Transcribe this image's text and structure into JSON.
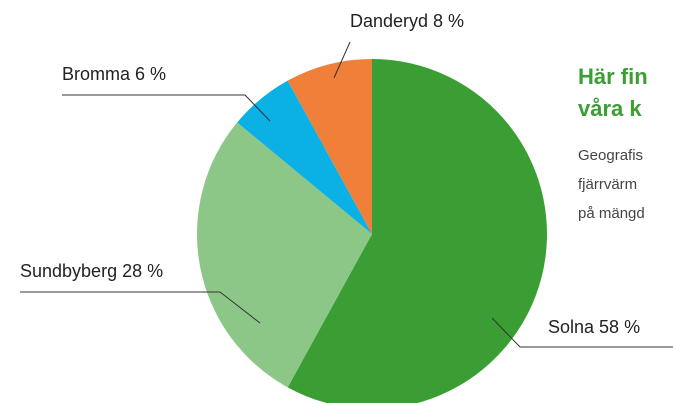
{
  "chart_data": {
    "type": "pie",
    "categories": [
      "Solna",
      "Sundbyberg",
      "Bromma",
      "Danderyd"
    ],
    "values": [
      58,
      28,
      6,
      8
    ],
    "value_labels": [
      "58 %",
      "28 %",
      "6 %",
      "8 %"
    ],
    "colors": [
      "#3a9e35",
      "#8cc788",
      "#0bb0e4",
      "#f07f3a"
    ],
    "heading": [
      "Här fin",
      "våra k"
    ],
    "paragraph": [
      "Geografis",
      "fjärrvärm",
      "på mängd"
    ]
  }
}
